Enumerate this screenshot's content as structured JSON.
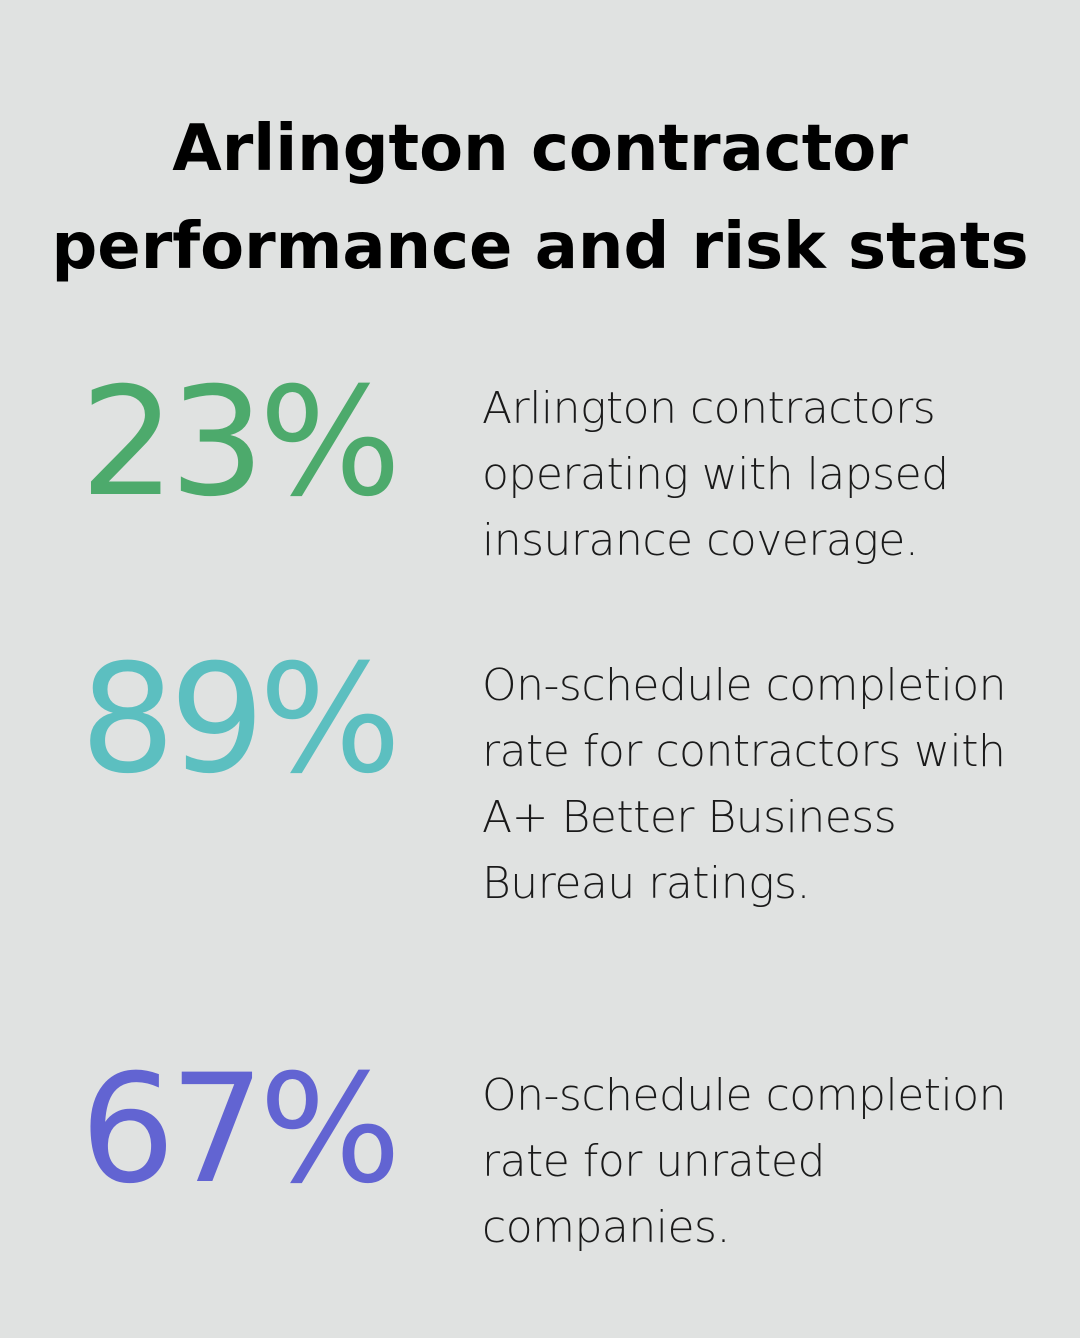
{
  "title": {
    "line1": "Arlington contractor",
    "line2": "performance and risk stats"
  },
  "stats": [
    {
      "value": "23%",
      "color": "#4daa6c",
      "description": "Arlington contractors operating with lapsed insurance coverage."
    },
    {
      "value": "89%",
      "color": "#5cbfc0",
      "description": "On-schedule completion rate for contractors with A+ Better Business Bureau ratings."
    },
    {
      "value": "67%",
      "color": "#6264d2",
      "description": "On-schedule completion rate for unrated companies."
    }
  ]
}
